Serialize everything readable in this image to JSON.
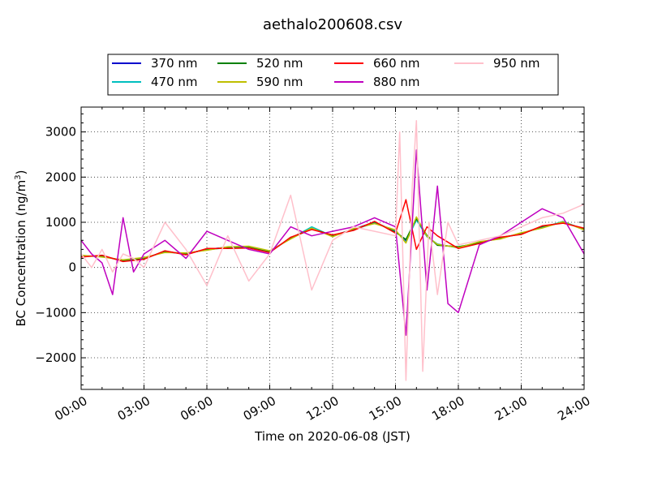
{
  "chart_data": {
    "type": "line",
    "title": "aethalo200608.csv",
    "xlabel": "Time on 2020-06-08 (JST)",
    "ylabel_main": "BC Concentration (ng/m",
    "ylabel_sup": "3",
    "ylabel_close": ")",
    "xlim": [
      0,
      24
    ],
    "ylim": [
      -2700,
      3550
    ],
    "x_ticks": [
      0,
      3,
      6,
      9,
      12,
      15,
      18,
      21,
      24
    ],
    "x_tick_labels": [
      "00:00",
      "03:00",
      "06:00",
      "09:00",
      "12:00",
      "15:00",
      "18:00",
      "21:00",
      "24:00"
    ],
    "y_ticks": [
      -2000,
      -1000,
      0,
      1000,
      2000,
      3000
    ],
    "y_tick_labels": [
      "−2000",
      "−1000",
      "0",
      "1000",
      "2000",
      "3000"
    ],
    "grid": true,
    "legend_placement": "top",
    "series": [
      {
        "name": "370 nm",
        "color": "#0000cc",
        "x": [
          0,
          1,
          2,
          3,
          4,
          5,
          6,
          7,
          8,
          9,
          10,
          11,
          12,
          13,
          14,
          15,
          15.5,
          16,
          16.5,
          17,
          18,
          19,
          20,
          21,
          22,
          23,
          24
        ],
        "y": [
          250,
          250,
          150,
          200,
          350,
          300,
          400,
          450,
          450,
          350,
          650,
          850,
          700,
          850,
          1000,
          800,
          600,
          1100,
          700,
          500,
          450,
          550,
          650,
          750,
          900,
          1000,
          850
        ]
      },
      {
        "name": "470 nm",
        "color": "#00bfbf",
        "x": [
          0,
          1,
          2,
          3,
          4,
          5,
          6,
          7,
          8,
          9,
          10,
          11,
          12,
          13,
          14,
          15,
          15.5,
          16,
          16.5,
          17,
          18,
          19,
          20,
          21,
          22,
          23,
          24
        ],
        "y": [
          260,
          240,
          160,
          210,
          340,
          310,
          390,
          440,
          460,
          360,
          640,
          900,
          690,
          840,
          980,
          820,
          560,
          1050,
          680,
          520,
          430,
          560,
          640,
          760,
          880,
          1020,
          840
        ]
      },
      {
        "name": "520 nm",
        "color": "#008000",
        "x": [
          0,
          1,
          2,
          3,
          4,
          5,
          6,
          7,
          8,
          9,
          10,
          11,
          12,
          13,
          14,
          15,
          15.5,
          16,
          16.5,
          17,
          18,
          19,
          20,
          21,
          22,
          23,
          24
        ],
        "y": [
          240,
          260,
          140,
          190,
          360,
          290,
          410,
          430,
          440,
          340,
          660,
          860,
          710,
          830,
          1010,
          780,
          620,
          1080,
          710,
          490,
          460,
          540,
          660,
          740,
          910,
          990,
          860
        ]
      },
      {
        "name": "590 nm",
        "color": "#bfbf00",
        "x": [
          0,
          1,
          2,
          3,
          4,
          5,
          6,
          7,
          8,
          9,
          10,
          11,
          12,
          13,
          14,
          15,
          15.5,
          16,
          16.5,
          17,
          18,
          19,
          20,
          21,
          22,
          23,
          24
        ],
        "y": [
          270,
          230,
          170,
          220,
          330,
          320,
          380,
          460,
          470,
          370,
          630,
          870,
          680,
          860,
          970,
          830,
          540,
          1120,
          690,
          510,
          440,
          570,
          630,
          770,
          870,
          1010,
          830
        ]
      },
      {
        "name": "660 nm",
        "color": "#ff0000",
        "x": [
          0,
          1,
          2,
          3,
          4,
          5,
          6,
          7,
          8,
          9,
          10,
          11,
          12,
          13,
          14,
          15,
          15.5,
          16,
          16.5,
          17,
          18,
          19,
          20,
          21,
          22,
          23,
          24
        ],
        "y": [
          230,
          270,
          130,
          180,
          370,
          280,
          420,
          420,
          430,
          330,
          670,
          840,
          720,
          820,
          1020,
          760,
          1500,
          400,
          900,
          700,
          420,
          530,
          670,
          730,
          920,
          980,
          870
        ]
      },
      {
        "name": "880 nm",
        "color": "#bf00bf",
        "x": [
          0,
          0.5,
          1,
          1.5,
          2,
          2.5,
          3,
          4,
          5,
          6,
          7,
          8,
          9,
          10,
          11,
          12,
          13,
          14,
          15,
          15.5,
          16,
          16.5,
          17,
          17.5,
          18,
          19,
          20,
          21,
          22,
          23,
          24
        ],
        "y": [
          600,
          300,
          100,
          -600,
          1100,
          -100,
          300,
          600,
          200,
          800,
          600,
          400,
          300,
          900,
          700,
          800,
          900,
          1100,
          900,
          -1500,
          2600,
          -500,
          1800,
          -800,
          -1000,
          500,
          700,
          1000,
          1300,
          1100,
          300
        ]
      },
      {
        "name": "950 nm",
        "color": "#ffc0cb",
        "x": [
          0,
          0.5,
          1,
          1.5,
          2,
          2.5,
          3,
          4,
          5,
          6,
          7,
          8,
          9,
          10,
          11,
          12,
          13,
          14,
          15,
          15.2,
          15.5,
          15.8,
          16,
          16.3,
          16.6,
          17,
          17.5,
          18,
          19,
          20,
          21,
          22,
          23,
          24
        ],
        "y": [
          300,
          0,
          400,
          -100,
          300,
          200,
          0,
          1000,
          400,
          -400,
          700,
          -300,
          300,
          1600,
          -500,
          600,
          900,
          800,
          700,
          3000,
          -2500,
          1800,
          3250,
          -2300,
          1000,
          -600,
          1000,
          500,
          600,
          700,
          900,
          1100,
          1200,
          1400
        ]
      }
    ]
  }
}
